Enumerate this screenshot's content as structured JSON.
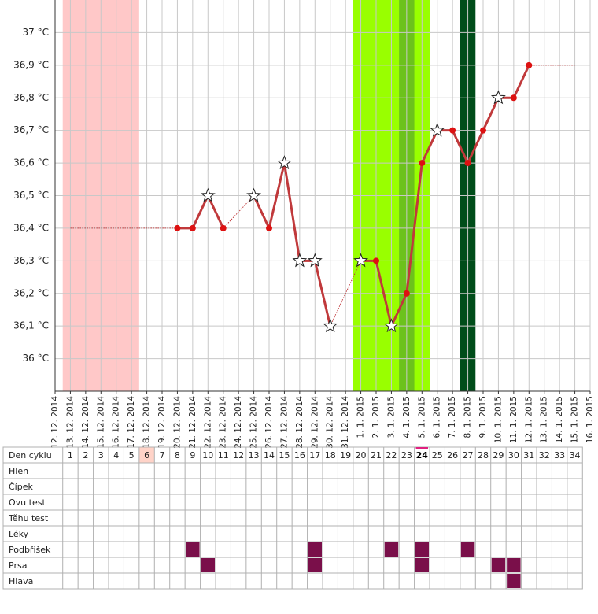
{
  "chart_data": {
    "type": "line",
    "x": [
      "12. 12. 2014",
      "13. 12. 2014",
      "14. 12. 2014",
      "15. 12. 2014",
      "16. 12. 2014",
      "17. 12. 2014",
      "18. 12. 2014",
      "19. 12. 2014",
      "20. 12. 2014",
      "21. 12. 2014",
      "22. 12. 2014",
      "23. 12. 2014",
      "24. 12. 2014",
      "25. 12. 2014",
      "26. 12. 2014",
      "27. 12. 2014",
      "28. 12. 2014",
      "29. 12. 2014",
      "30. 12. 2014",
      "31. 12. 2014",
      "1. 1. 2015",
      "2. 1. 2015",
      "3. 1. 2015",
      "4. 1. 2015",
      "5. 1. 2015",
      "6. 1. 2015",
      "7. 1. 2015",
      "8. 1. 2015",
      "9. 1. 2015",
      "10. 1. 2015",
      "11. 1. 2015",
      "12. 1. 2015",
      "13. 1. 2015",
      "14. 1. 2015",
      "15. 1. 2015",
      "16. 1. 2015"
    ],
    "series": [
      {
        "color": "#c0393b",
        "marker_color": "#dd1111",
        "values": [
          null,
          null,
          null,
          null,
          null,
          null,
          null,
          null,
          36.4,
          36.4,
          36.5,
          36.4,
          null,
          36.5,
          36.4,
          36.6,
          36.3,
          36.3,
          36.1,
          null,
          36.3,
          36.3,
          36.1,
          36.2,
          36.6,
          36.7,
          36.7,
          36.6,
          36.7,
          36.8,
          36.8,
          36.9,
          null,
          null,
          null,
          null
        ],
        "markers": [
          null,
          null,
          null,
          null,
          null,
          null,
          null,
          null,
          "dot",
          "dot",
          "star",
          "dot",
          null,
          "star",
          "dot",
          "star",
          "star",
          "star",
          "star",
          null,
          "star",
          "dot",
          "star",
          "dot",
          "dot",
          "star",
          "dot",
          "dot",
          "dot",
          "star",
          "dot",
          "dot",
          null,
          null,
          null,
          null
        ]
      }
    ],
    "ylim": [
      35.9,
      37.1
    ],
    "yticks": [
      {
        "value": 36,
        "label": "36 °C"
      },
      {
        "value": 36.1,
        "label": "36,1 °C"
      },
      {
        "value": 36.2,
        "label": "36,2 °C"
      },
      {
        "value": 36.3,
        "label": "36,3 °C"
      },
      {
        "value": 36.4,
        "label": "36,4 °C"
      },
      {
        "value": 36.5,
        "label": "36,5 °C"
      },
      {
        "value": 36.6,
        "label": "36,6 °C"
      },
      {
        "value": 36.7,
        "label": "36,7 °C"
      },
      {
        "value": 36.8,
        "label": "36,8 °C"
      },
      {
        "value": 36.9,
        "label": "36,9 °C"
      },
      {
        "value": 37,
        "label": "37 °C"
      }
    ],
    "grid": true,
    "bands": [
      {
        "from": "13. 12. 2014",
        "to": "17. 12. 2014",
        "color": "#ffc8c8"
      },
      {
        "from": "1. 1. 2015",
        "to": "5. 1. 2015",
        "color": "#99ff00"
      },
      {
        "from": "4. 1. 2015",
        "to": "4. 1. 2015",
        "color": "#6cc21c"
      },
      {
        "from": "8. 1. 2015",
        "to": "8. 1. 2015",
        "color": "#004d1a"
      }
    ]
  },
  "cycle_table": {
    "header": "Den cyklu",
    "days": [
      1,
      2,
      3,
      4,
      5,
      6,
      7,
      8,
      9,
      10,
      11,
      12,
      13,
      14,
      15,
      16,
      17,
      18,
      19,
      20,
      21,
      22,
      23,
      24,
      25,
      26,
      27,
      28,
      29,
      30,
      31,
      32,
      33,
      34
    ],
    "highlight_day": 6,
    "current_day": 24,
    "mark_color": "#7a0f4a",
    "rows": [
      {
        "label": "Hlen",
        "days": []
      },
      {
        "label": "Čípek",
        "days": []
      },
      {
        "label": "Ovu test",
        "days": []
      },
      {
        "label": "Těhu test",
        "days": []
      },
      {
        "label": "Léky",
        "days": []
      },
      {
        "label": "Podbřišek",
        "days": [
          9,
          17,
          22,
          24,
          27
        ]
      },
      {
        "label": "Prsa",
        "days": [
          10,
          17,
          24,
          29,
          30
        ]
      },
      {
        "label": "Hlava",
        "days": [
          30
        ]
      }
    ]
  }
}
